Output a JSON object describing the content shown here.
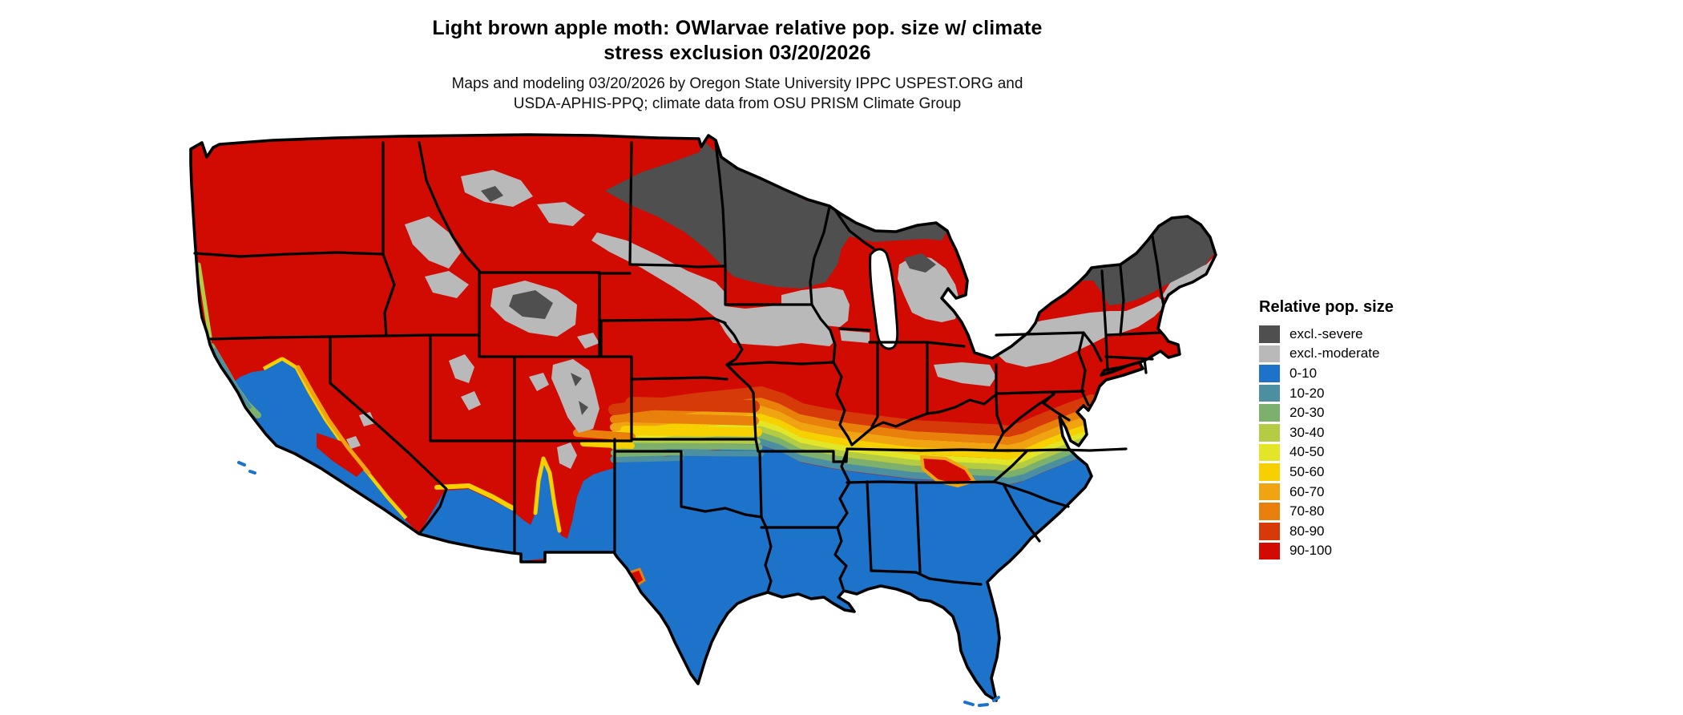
{
  "title": {
    "line1": "Light brown apple moth: OWlarvae relative pop. size w/ climate",
    "line2": "stress exclusion 03/20/2026"
  },
  "subtitle": {
    "line1": "Maps and modeling 03/20/2026 by Oregon State University IPPC USPEST.ORG and",
    "line2": "USDA-APHIS-PPQ; climate data from OSU PRISM Climate Group"
  },
  "legend": {
    "title": "Relative pop. size",
    "items": [
      {
        "label": "excl.-severe",
        "color": "#4f4f4f"
      },
      {
        "label": "excl.-moderate",
        "color": "#b9b9b9"
      },
      {
        "label": "0-10",
        "color": "#1d72c9"
      },
      {
        "label": "10-20",
        "color": "#4c8fa0"
      },
      {
        "label": "20-30",
        "color": "#7cb06c"
      },
      {
        "label": "30-40",
        "color": "#b3cc43"
      },
      {
        "label": "40-50",
        "color": "#e2e626"
      },
      {
        "label": "50-60",
        "color": "#f6d000"
      },
      {
        "label": "60-70",
        "color": "#f0a411"
      },
      {
        "label": "70-80",
        "color": "#e8800b"
      },
      {
        "label": "80-90",
        "color": "#d63a08"
      },
      {
        "label": "90-100",
        "color": "#d10a02"
      }
    ]
  },
  "palette": {
    "exclSevere": "#4f4f4f",
    "exclModerate": "#b9b9b9",
    "b0": "#1d72c9",
    "b10": "#4c8fa0",
    "b20": "#7cb06c",
    "b30": "#b3cc43",
    "b40": "#e2e626",
    "b50": "#f6d000",
    "b60": "#f0a411",
    "b70": "#e8800b",
    "b80": "#d63a08",
    "b90": "#d10a02",
    "border": "#000000",
    "water": "#ffffff"
  },
  "map": {
    "region": "Contiguous United States",
    "date_shown": "03/20/2026"
  }
}
